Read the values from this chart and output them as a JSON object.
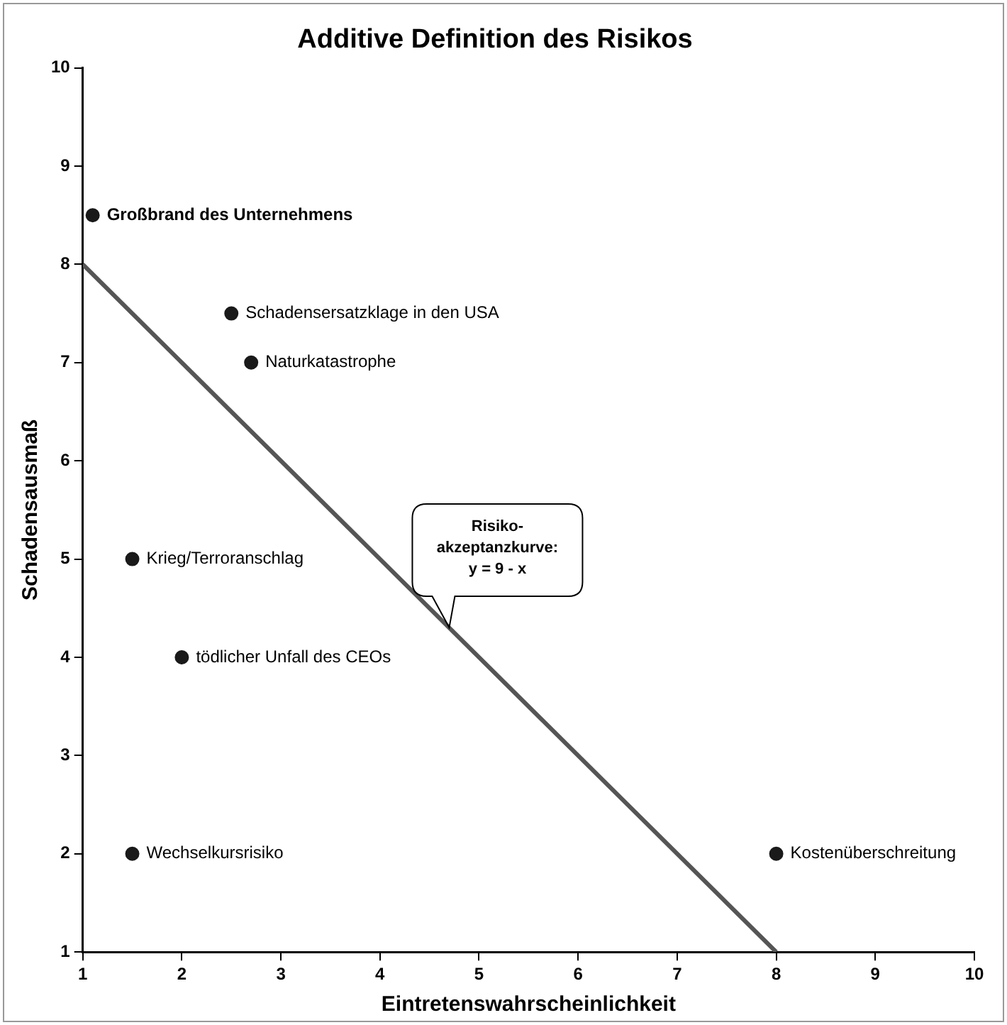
{
  "chart_data": {
    "type": "scatter",
    "title": "Additive Definition des Risikos",
    "xlabel": "Eintretenswahrscheinlichkeit",
    "ylabel": "Schadensausmaß",
    "series": [
      {
        "type": "scatter",
        "color": "#1a1a1a",
        "marker": "circle",
        "x": [
          1.1,
          2.5,
          2.7,
          1.5,
          2,
          1.5,
          8
        ],
        "values": [
          8.5,
          7.5,
          7,
          5,
          4,
          2,
          2
        ]
      },
      {
        "type": "line",
        "color": "#555555",
        "marker": "none",
        "x": [
          1,
          8
        ],
        "values": [
          8,
          1
        ]
      }
    ],
    "xlim": [
      1,
      10
    ],
    "ylim": [
      1,
      10
    ],
    "xticks": [
      1,
      2,
      3,
      4,
      5,
      6,
      7,
      8,
      9,
      10
    ],
    "yticks": [
      1,
      2,
      3,
      4,
      5,
      6,
      7,
      8,
      9,
      10
    ],
    "grid": false,
    "legend": false,
    "line_style": "solid",
    "annotations": [
      {
        "text": "Großbrand des Unternehmens",
        "x": 1.1,
        "y": 8.5
      },
      {
        "text": "Schadensersatzklage in den USA",
        "x": 2.5,
        "y": 7.5
      },
      {
        "text": "Naturkatastrophe",
        "x": 2.7,
        "y": 7
      },
      {
        "text": "Krieg/Terroranschlag",
        "x": 1.5,
        "y": 5
      },
      {
        "text": "tödlicher Unfall des CEOs",
        "x": 2,
        "y": 4
      },
      {
        "text": "Wechselkursrisiko",
        "x": 1.5,
        "y": 2
      },
      {
        "text": "Kostenüberschreitung",
        "x": 8,
        "y": 2
      },
      "Risiko-\nakzeptanzkurve:\ny = 9 - x"
    ]
  }
}
